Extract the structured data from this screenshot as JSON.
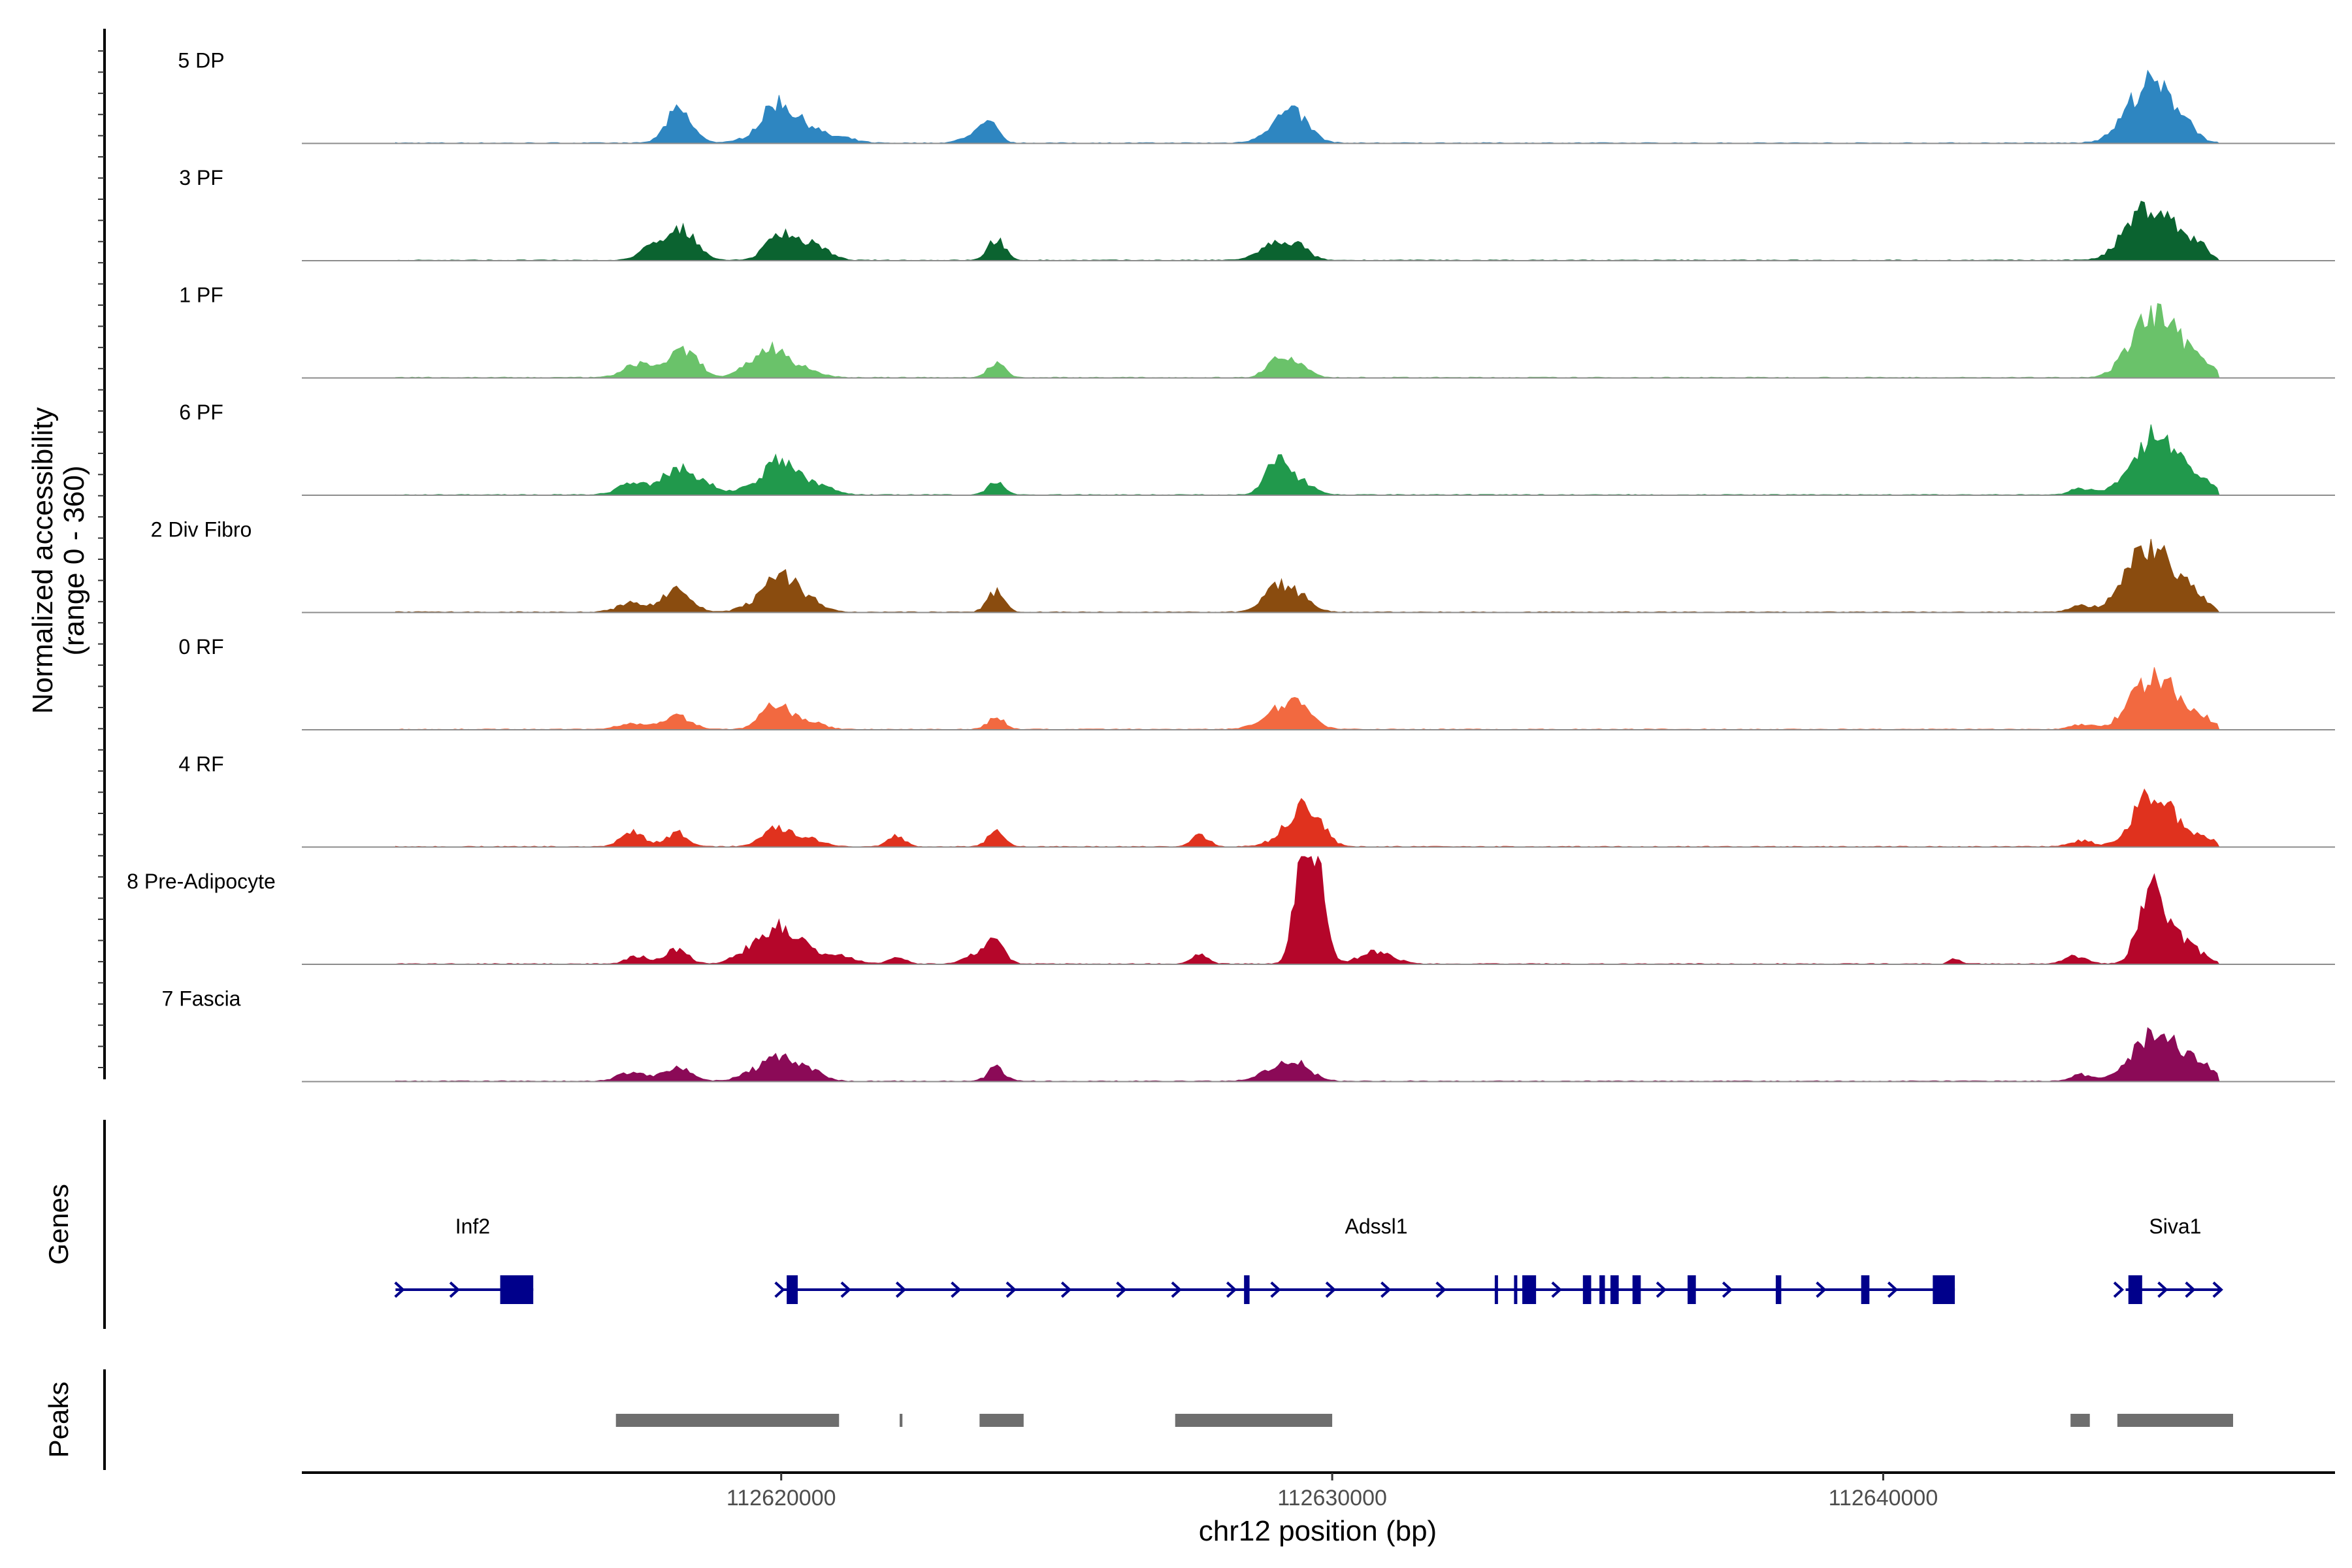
{
  "chart_data": {
    "type": "area",
    "chromosome": "chr12",
    "xlabel": "chr12 position (bp)",
    "ylabel_line1": "Normalized accessibility",
    "ylabel_line2": "(range 0 - 360)",
    "yrange": [
      0,
      360
    ],
    "xlim": [
      112611300,
      112648200
    ],
    "x_ticks": [
      112620000,
      112630000,
      112640000
    ],
    "x_tick_labels": [
      "112620000",
      "112630000",
      "112640000"
    ],
    "signal_start": 112613000,
    "signal_end": 112646100,
    "tracks": [
      {
        "name": "5 DP",
        "color": "#2e86c1",
        "peaks": [
          [
            112618100,
            60,
            200
          ],
          [
            112618200,
            50,
            250
          ],
          [
            112619700,
            40,
            300
          ],
          [
            112620000,
            110,
            250
          ],
          [
            112620500,
            45,
            200
          ],
          [
            112621000,
            20,
            300
          ],
          [
            112623500,
            30,
            200
          ],
          [
            112623800,
            55,
            150
          ],
          [
            112629100,
            70,
            300
          ],
          [
            112629400,
            50,
            250
          ],
          [
            112644700,
            150,
            350
          ],
          [
            112645100,
            85,
            300
          ],
          [
            112645500,
            45,
            200
          ]
        ]
      },
      {
        "name": "3 PF",
        "color": "#0b6330",
        "peaks": [
          [
            112617600,
            35,
            200
          ],
          [
            112618100,
            80,
            250
          ],
          [
            112618400,
            40,
            200
          ],
          [
            112620000,
            95,
            250
          ],
          [
            112620600,
            50,
            250
          ],
          [
            112623900,
            70,
            150
          ],
          [
            112629000,
            55,
            300
          ],
          [
            112629400,
            30,
            200
          ],
          [
            112644700,
            150,
            350
          ],
          [
            112645200,
            80,
            300
          ],
          [
            112645700,
            45,
            200
          ]
        ]
      },
      {
        "name": "1 PF",
        "color": "#6ac26a",
        "peaks": [
          [
            112617400,
            45,
            250
          ],
          [
            112618100,
            65,
            250
          ],
          [
            112618400,
            40,
            200
          ],
          [
            112619500,
            40,
            250
          ],
          [
            112619900,
            80,
            250
          ],
          [
            112620400,
            25,
            300
          ],
          [
            112623900,
            50,
            150
          ],
          [
            112629000,
            55,
            200
          ],
          [
            112629400,
            40,
            200
          ],
          [
            112644800,
            175,
            350
          ],
          [
            112645300,
            90,
            300
          ],
          [
            112645800,
            45,
            200
          ]
        ]
      },
      {
        "name": "6 PF",
        "color": "#21994c",
        "peaks": [
          [
            112617300,
            40,
            250
          ],
          [
            112618100,
            85,
            250
          ],
          [
            112618600,
            35,
            250
          ],
          [
            112619500,
            30,
            250
          ],
          [
            112620000,
            110,
            250
          ],
          [
            112620600,
            35,
            300
          ],
          [
            112623900,
            45,
            150
          ],
          [
            112629000,
            110,
            200
          ],
          [
            112629400,
            45,
            250
          ],
          [
            112644800,
            165,
            350
          ],
          [
            112645300,
            85,
            300
          ],
          [
            112645800,
            40,
            200
          ],
          [
            112643600,
            20,
            200
          ]
        ]
      },
      {
        "name": "2 Div Fibro",
        "color": "#8a4c0f",
        "peaks": [
          [
            112617300,
            30,
            250
          ],
          [
            112618100,
            75,
            250
          ],
          [
            112619500,
            25,
            250
          ],
          [
            112620000,
            120,
            250
          ],
          [
            112620500,
            40,
            250
          ],
          [
            112623900,
            70,
            150
          ],
          [
            112629000,
            75,
            250
          ],
          [
            112629400,
            45,
            250
          ],
          [
            112644700,
            185,
            350
          ],
          [
            112645200,
            100,
            300
          ],
          [
            112645700,
            40,
            200
          ],
          [
            112643600,
            20,
            200
          ]
        ]
      },
      {
        "name": "0 RF",
        "color": "#f26940",
        "peaks": [
          [
            112617300,
            20,
            250
          ],
          [
            112618100,
            45,
            250
          ],
          [
            112619900,
            85,
            250
          ],
          [
            112620500,
            25,
            250
          ],
          [
            112623900,
            40,
            150
          ],
          [
            112629100,
            60,
            350
          ],
          [
            112629400,
            50,
            250
          ],
          [
            112644800,
            145,
            350
          ],
          [
            112645300,
            70,
            300
          ],
          [
            112645800,
            30,
            200
          ],
          [
            112643600,
            15,
            200
          ]
        ]
      },
      {
        "name": "4 RF",
        "color": "#e0321e",
        "peaks": [
          [
            112617300,
            50,
            200
          ],
          [
            112618100,
            45,
            200
          ],
          [
            112619900,
            65,
            250
          ],
          [
            112620500,
            25,
            250
          ],
          [
            112622100,
            35,
            150
          ],
          [
            112623900,
            50,
            150
          ],
          [
            112627600,
            40,
            150
          ],
          [
            112629300,
            60,
            300
          ],
          [
            112629600,
            95,
            250
          ],
          [
            112644800,
            140,
            300
          ],
          [
            112645200,
            70,
            300
          ],
          [
            112645800,
            30,
            200
          ],
          [
            112643600,
            20,
            200
          ]
        ]
      },
      {
        "name": "8 Pre-Adipocyte",
        "color": "#b5062a",
        "peaks": [
          [
            112617400,
            25,
            200
          ],
          [
            112618100,
            50,
            200
          ],
          [
            112619400,
            40,
            250
          ],
          [
            112619900,
            100,
            250
          ],
          [
            112620300,
            60,
            250
          ],
          [
            112621000,
            30,
            300
          ],
          [
            112622100,
            25,
            150
          ],
          [
            112623500,
            30,
            200
          ],
          [
            112623900,
            90,
            150
          ],
          [
            112627600,
            30,
            150
          ],
          [
            112629400,
            180,
            150
          ],
          [
            112629600,
            320,
            150
          ],
          [
            112629800,
            150,
            150
          ],
          [
            112630800,
            40,
            300
          ],
          [
            112644800,
            185,
            200
          ],
          [
            112645100,
            110,
            250
          ],
          [
            112645600,
            45,
            250
          ],
          [
            112643500,
            25,
            200
          ],
          [
            112641300,
            15,
            100
          ]
        ]
      },
      {
        "name": "7 Fascia",
        "color": "#8b0a57",
        "peaks": [
          [
            112617300,
            30,
            250
          ],
          [
            112618100,
            45,
            250
          ],
          [
            112619500,
            30,
            250
          ],
          [
            112620000,
            75,
            250
          ],
          [
            112620500,
            35,
            250
          ],
          [
            112623900,
            45,
            150
          ],
          [
            112629000,
            40,
            300
          ],
          [
            112629400,
            45,
            250
          ],
          [
            112644800,
            125,
            350
          ],
          [
            112645300,
            85,
            300
          ],
          [
            112645800,
            40,
            200
          ],
          [
            112643600,
            20,
            200
          ]
        ]
      }
    ],
    "genes_panel_title": "Genes",
    "genes": [
      {
        "name": "Inf2",
        "label_x": 112614400,
        "line": [
          112613000,
          112615500
        ],
        "exons": [
          [
            112614900,
            112615500
          ]
        ],
        "arrows": [
          112613100,
          112614100
        ]
      },
      {
        "name": "Adssl1",
        "label_x": 112630800,
        "line": [
          112620000,
          112641300
        ],
        "exons": [
          [
            112620100,
            112620300
          ],
          [
            112628400,
            112628500
          ],
          [
            112632950,
            112633000
          ],
          [
            112633300,
            112633350
          ],
          [
            112633450,
            112633700
          ],
          [
            112634550,
            112634700
          ],
          [
            112634850,
            112634950
          ],
          [
            112635050,
            112635200
          ],
          [
            112635450,
            112635600
          ],
          [
            112636450,
            112636600
          ],
          [
            112638050,
            112638150
          ],
          [
            112639600,
            112639750
          ],
          [
            112640900,
            112641300
          ]
        ],
        "arrows": [
          112620000,
          112621200,
          112622200,
          112623200,
          112624200,
          112625200,
          112626200,
          112627200,
          112628200,
          112629000,
          112630000,
          112631000,
          112632000,
          112634100,
          112636000,
          112637200,
          112638900,
          112640200
        ]
      },
      {
        "name": "Siva1",
        "label_x": 112645300,
        "line": [
          112644400,
          112646100
        ],
        "exons": [
          [
            112644450,
            112644700
          ]
        ],
        "arrows": [
          112644300,
          112645100,
          112645600,
          112646100
        ]
      }
    ],
    "peaks_panel_title": "Peaks",
    "peak_regions": [
      [
        112617000,
        112621050
      ],
      [
        112622150,
        112622200
      ],
      [
        112623600,
        112624400
      ],
      [
        112627150,
        112630000
      ],
      [
        112643400,
        112643750
      ],
      [
        112644250,
        112646350
      ]
    ]
  }
}
